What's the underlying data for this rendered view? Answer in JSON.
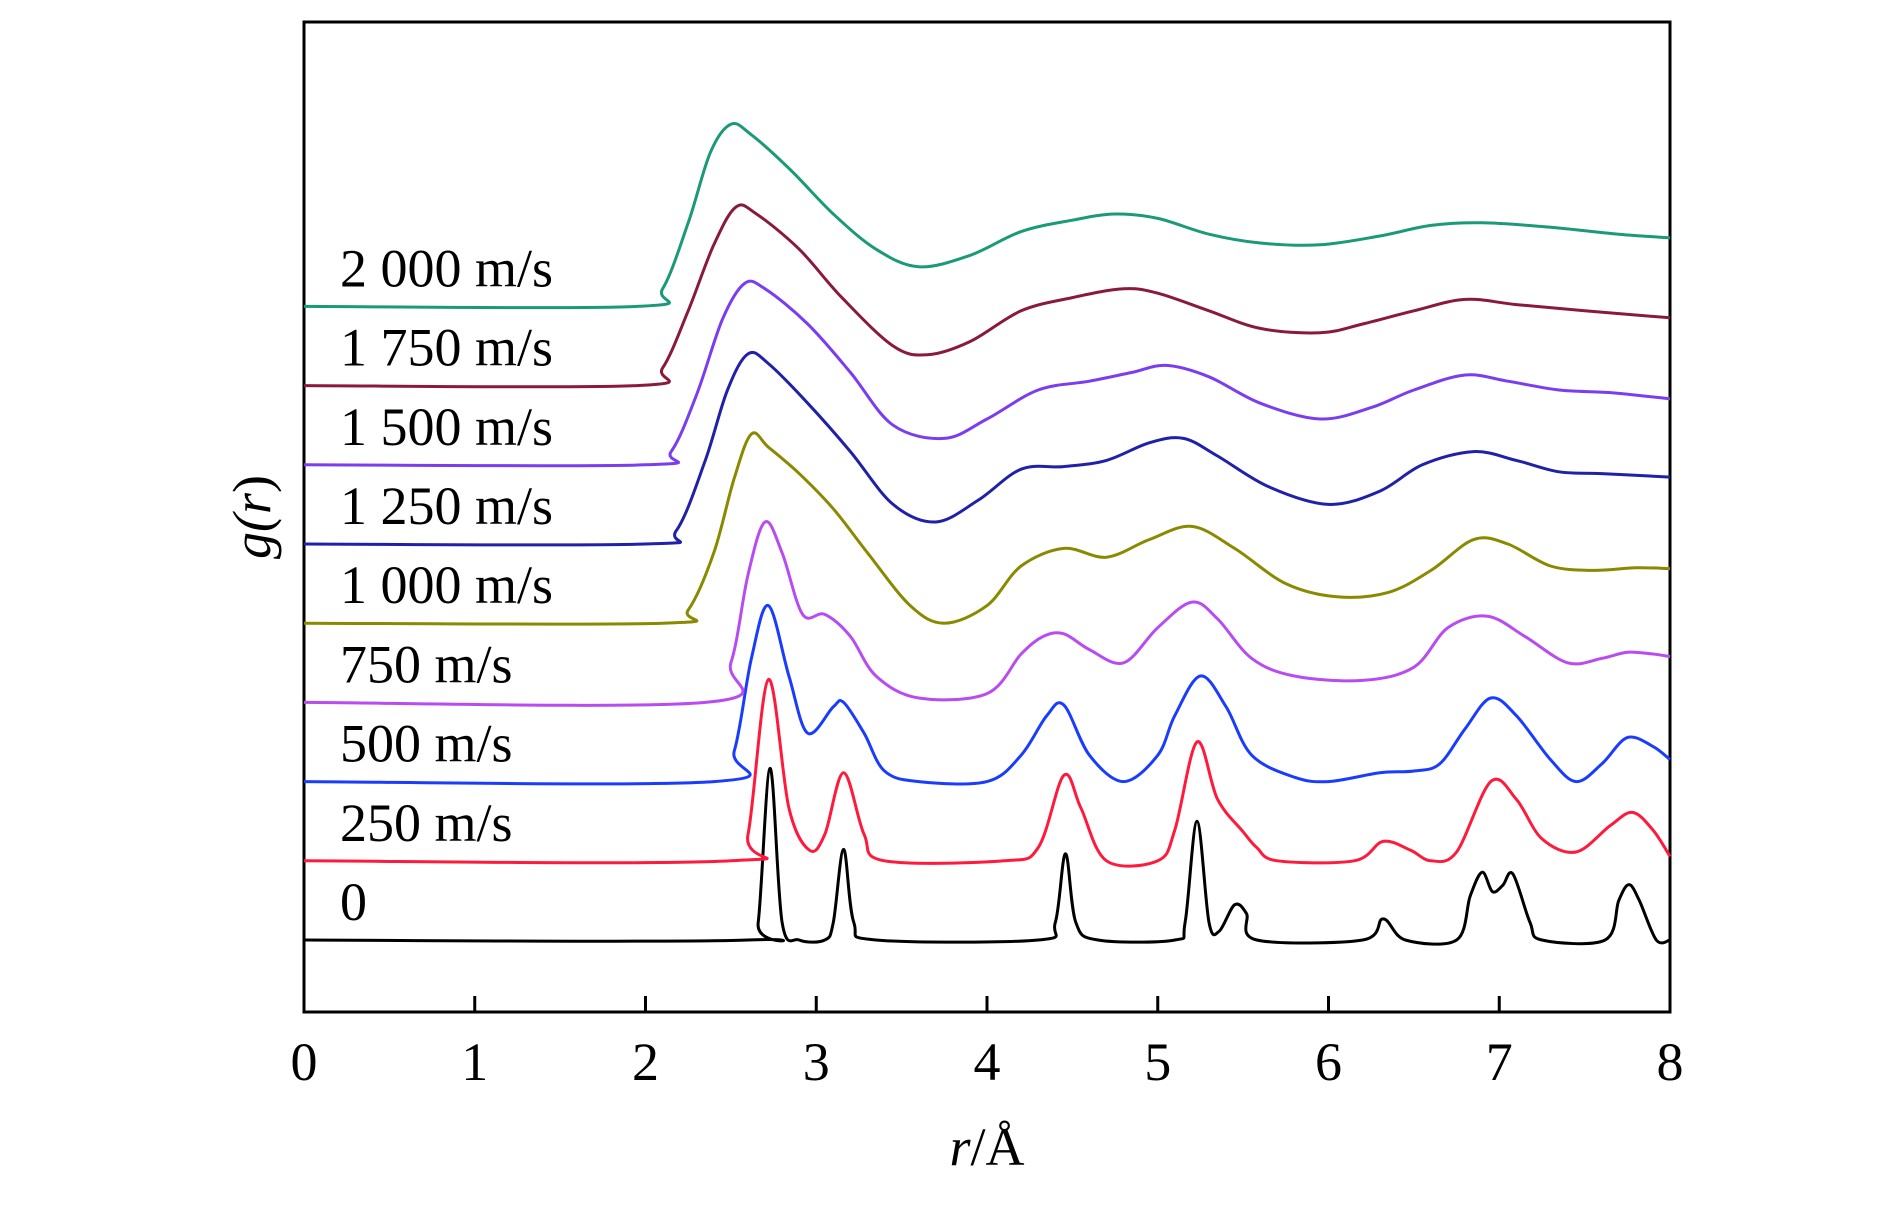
{
  "chart_data": {
    "type": "line",
    "title": "",
    "xlabel": {
      "italic": "r",
      "rest": "/Å"
    },
    "ylabel": {
      "prefix": "g(",
      "italic": "r",
      "suffix": ")"
    },
    "xlim": [
      0,
      8
    ],
    "x_ticks": [
      "0",
      "1",
      "2",
      "3",
      "4",
      "5",
      "6",
      "7",
      "8"
    ],
    "y_ticks": [],
    "grid": false,
    "legend": "labels printed at the left above each curve",
    "baseline_offsets_note": "curves are vertically stacked; y values are g(r) relative to each curve's own baseline",
    "series": [
      {
        "name": "0",
        "color": "#000000",
        "baseline": 0,
        "points": [
          [
            0,
            0
          ],
          [
            2.6,
            0
          ],
          [
            2.66,
            0.2
          ],
          [
            2.73,
            1.95
          ],
          [
            2.8,
            0.2
          ],
          [
            2.9,
            0
          ],
          [
            3.05,
            0
          ],
          [
            3.1,
            0.2
          ],
          [
            3.16,
            1.03
          ],
          [
            3.22,
            0.2
          ],
          [
            3.35,
            0
          ],
          [
            4.3,
            0
          ],
          [
            4.4,
            0.2
          ],
          [
            4.46,
            0.98
          ],
          [
            4.52,
            0.2
          ],
          [
            4.65,
            0
          ],
          [
            5.1,
            0
          ],
          [
            5.16,
            0.2
          ],
          [
            5.23,
            1.35
          ],
          [
            5.3,
            0.2
          ],
          [
            5.36,
            0.1
          ],
          [
            5.45,
            0.4
          ],
          [
            5.52,
            0.3
          ],
          [
            5.58,
            0
          ],
          [
            6.2,
            0
          ],
          [
            6.32,
            0.24
          ],
          [
            6.45,
            0
          ],
          [
            6.75,
            0
          ],
          [
            6.83,
            0.5
          ],
          [
            6.9,
            0.77
          ],
          [
            6.96,
            0.55
          ],
          [
            7.02,
            0.62
          ],
          [
            7.08,
            0.75
          ],
          [
            7.18,
            0.2
          ],
          [
            7.25,
            0
          ],
          [
            7.62,
            0
          ],
          [
            7.7,
            0.45
          ],
          [
            7.76,
            0.63
          ],
          [
            7.82,
            0.45
          ],
          [
            7.92,
            0
          ],
          [
            8,
            0
          ]
        ]
      },
      {
        "name": "250 m/s",
        "color": "#ff1a3c",
        "baseline": 0.9,
        "points": [
          [
            0,
            0
          ],
          [
            2.5,
            0
          ],
          [
            2.6,
            0.3
          ],
          [
            2.72,
            2.06
          ],
          [
            2.84,
            0.6
          ],
          [
            2.96,
            0.12
          ],
          [
            3.05,
            0.3
          ],
          [
            3.16,
            1.0
          ],
          [
            3.28,
            0.3
          ],
          [
            3.4,
            0
          ],
          [
            4.1,
            0
          ],
          [
            4.3,
            0.15
          ],
          [
            4.45,
            0.97
          ],
          [
            4.55,
            0.6
          ],
          [
            4.7,
            0
          ],
          [
            5,
            0
          ],
          [
            5.1,
            0.35
          ],
          [
            5.23,
            1.35
          ],
          [
            5.35,
            0.7
          ],
          [
            5.5,
            0.33
          ],
          [
            5.58,
            0.15
          ],
          [
            5.7,
            0
          ],
          [
            6.15,
            0
          ],
          [
            6.32,
            0.22
          ],
          [
            6.48,
            0.12
          ],
          [
            6.6,
            0
          ],
          [
            6.75,
            0.1
          ],
          [
            6.95,
            0.9
          ],
          [
            7.1,
            0.7
          ],
          [
            7.25,
            0.25
          ],
          [
            7.45,
            0.1
          ],
          [
            7.65,
            0.4
          ],
          [
            7.78,
            0.55
          ],
          [
            7.9,
            0.35
          ],
          [
            8,
            0.05
          ]
        ]
      },
      {
        "name": "500 m/s",
        "color": "#1a3cff",
        "baseline": 1.8,
        "points": [
          [
            0,
            0
          ],
          [
            2.4,
            0
          ],
          [
            2.52,
            0.35
          ],
          [
            2.62,
            1.4
          ],
          [
            2.72,
            2.0
          ],
          [
            2.84,
            1.2
          ],
          [
            2.95,
            0.55
          ],
          [
            3.1,
            0.85
          ],
          [
            3.16,
            0.9
          ],
          [
            3.28,
            0.55
          ],
          [
            3.4,
            0.12
          ],
          [
            3.6,
            0
          ],
          [
            4,
            0
          ],
          [
            4.2,
            0.3
          ],
          [
            4.35,
            0.75
          ],
          [
            4.45,
            0.87
          ],
          [
            4.6,
            0.3
          ],
          [
            4.8,
            0
          ],
          [
            5,
            0.3
          ],
          [
            5.1,
            0.75
          ],
          [
            5.25,
            1.2
          ],
          [
            5.4,
            0.85
          ],
          [
            5.55,
            0.3
          ],
          [
            5.8,
            0.05
          ],
          [
            6,
            0
          ],
          [
            6.3,
            0.1
          ],
          [
            6.5,
            0.12
          ],
          [
            6.65,
            0.2
          ],
          [
            6.8,
            0.6
          ],
          [
            6.95,
            0.95
          ],
          [
            7.1,
            0.75
          ],
          [
            7.3,
            0.25
          ],
          [
            7.45,
            0
          ],
          [
            7.6,
            0.2
          ],
          [
            7.75,
            0.5
          ],
          [
            7.9,
            0.4
          ],
          [
            8,
            0.25
          ]
        ]
      },
      {
        "name": "750 m/s",
        "color": "#b84cf0",
        "baseline": 2.7,
        "points": [
          [
            0,
            0
          ],
          [
            2.35,
            0
          ],
          [
            2.5,
            0.45
          ],
          [
            2.6,
            1.45
          ],
          [
            2.7,
            2.05
          ],
          [
            2.8,
            1.7
          ],
          [
            2.92,
            1.0
          ],
          [
            3.05,
            1.0
          ],
          [
            3.2,
            0.75
          ],
          [
            3.35,
            0.3
          ],
          [
            3.6,
            0.05
          ],
          [
            4,
            0.1
          ],
          [
            4.2,
            0.55
          ],
          [
            4.33,
            0.75
          ],
          [
            4.45,
            0.78
          ],
          [
            4.6,
            0.6
          ],
          [
            4.8,
            0.45
          ],
          [
            5,
            0.85
          ],
          [
            5.2,
            1.14
          ],
          [
            5.35,
            0.95
          ],
          [
            5.55,
            0.5
          ],
          [
            5.8,
            0.3
          ],
          [
            6.2,
            0.25
          ],
          [
            6.5,
            0.4
          ],
          [
            6.7,
            0.85
          ],
          [
            6.93,
            0.98
          ],
          [
            7.15,
            0.75
          ],
          [
            7.4,
            0.45
          ],
          [
            7.6,
            0.5
          ],
          [
            7.75,
            0.57
          ],
          [
            7.9,
            0.55
          ],
          [
            8,
            0.52
          ]
        ]
      },
      {
        "name": "1 000 m/s",
        "color": "#8a8a00",
        "baseline": 3.6,
        "points": [
          [
            0,
            0
          ],
          [
            2.1,
            0
          ],
          [
            2.25,
            0.15
          ],
          [
            2.4,
            0.8
          ],
          [
            2.52,
            1.65
          ],
          [
            2.62,
            2.15
          ],
          [
            2.72,
            2.0
          ],
          [
            2.9,
            1.7
          ],
          [
            3.1,
            1.3
          ],
          [
            3.3,
            0.8
          ],
          [
            3.55,
            0.2
          ],
          [
            3.75,
            0
          ],
          [
            4,
            0.2
          ],
          [
            4.2,
            0.65
          ],
          [
            4.45,
            0.85
          ],
          [
            4.7,
            0.75
          ],
          [
            4.95,
            0.95
          ],
          [
            5.2,
            1.1
          ],
          [
            5.45,
            0.85
          ],
          [
            5.75,
            0.45
          ],
          [
            6.05,
            0.3
          ],
          [
            6.35,
            0.35
          ],
          [
            6.6,
            0.6
          ],
          [
            6.85,
            0.95
          ],
          [
            7.05,
            0.9
          ],
          [
            7.3,
            0.65
          ],
          [
            7.55,
            0.6
          ],
          [
            7.8,
            0.63
          ],
          [
            8,
            0.62
          ]
        ]
      },
      {
        "name": "1 250 m/s",
        "color": "#2020a8",
        "baseline": 4.5,
        "points": [
          [
            0,
            0
          ],
          [
            2,
            0
          ],
          [
            2.18,
            0.15
          ],
          [
            2.35,
            0.95
          ],
          [
            2.48,
            1.75
          ],
          [
            2.6,
            2.16
          ],
          [
            2.72,
            2.05
          ],
          [
            2.95,
            1.6
          ],
          [
            3.2,
            1.05
          ],
          [
            3.45,
            0.45
          ],
          [
            3.7,
            0.25
          ],
          [
            3.95,
            0.5
          ],
          [
            4.2,
            0.85
          ],
          [
            4.45,
            0.88
          ],
          [
            4.7,
            0.95
          ],
          [
            4.95,
            1.15
          ],
          [
            5.15,
            1.2
          ],
          [
            5.35,
            1.0
          ],
          [
            5.65,
            0.65
          ],
          [
            6,
            0.45
          ],
          [
            6.3,
            0.6
          ],
          [
            6.55,
            0.9
          ],
          [
            6.85,
            1.05
          ],
          [
            7.1,
            0.95
          ],
          [
            7.35,
            0.82
          ],
          [
            7.6,
            0.8
          ],
          [
            8,
            0.76
          ]
        ]
      },
      {
        "name": "1 500 m/s",
        "color": "#7b3df0",
        "baseline": 5.4,
        "points": [
          [
            0,
            0
          ],
          [
            2,
            0
          ],
          [
            2.15,
            0.15
          ],
          [
            2.3,
            0.8
          ],
          [
            2.45,
            1.65
          ],
          [
            2.58,
            2.06
          ],
          [
            2.7,
            2.0
          ],
          [
            2.95,
            1.6
          ],
          [
            3.2,
            1.05
          ],
          [
            3.45,
            0.45
          ],
          [
            3.75,
            0.3
          ],
          [
            4,
            0.52
          ],
          [
            4.3,
            0.85
          ],
          [
            4.6,
            0.95
          ],
          [
            4.85,
            1.05
          ],
          [
            5.05,
            1.13
          ],
          [
            5.3,
            1.0
          ],
          [
            5.6,
            0.7
          ],
          [
            5.95,
            0.52
          ],
          [
            6.25,
            0.65
          ],
          [
            6.5,
            0.85
          ],
          [
            6.8,
            1.02
          ],
          [
            7.05,
            0.95
          ],
          [
            7.35,
            0.85
          ],
          [
            7.65,
            0.82
          ],
          [
            8,
            0.75
          ]
        ]
      },
      {
        "name": "1 750 m/s",
        "color": "#8a1a3c",
        "baseline": 6.3,
        "points": [
          [
            0,
            0
          ],
          [
            1.95,
            0
          ],
          [
            2.1,
            0.2
          ],
          [
            2.25,
            0.85
          ],
          [
            2.4,
            1.6
          ],
          [
            2.53,
            2.03
          ],
          [
            2.65,
            1.95
          ],
          [
            2.9,
            1.55
          ],
          [
            3.15,
            1.0
          ],
          [
            3.45,
            0.45
          ],
          [
            3.65,
            0.35
          ],
          [
            3.9,
            0.5
          ],
          [
            4.2,
            0.85
          ],
          [
            4.5,
            1.0
          ],
          [
            4.8,
            1.1
          ],
          [
            5,
            1.05
          ],
          [
            5.3,
            0.85
          ],
          [
            5.6,
            0.65
          ],
          [
            5.95,
            0.6
          ],
          [
            6.2,
            0.7
          ],
          [
            6.5,
            0.85
          ],
          [
            6.8,
            0.98
          ],
          [
            7.1,
            0.92
          ],
          [
            7.5,
            0.85
          ],
          [
            8,
            0.77
          ]
        ]
      },
      {
        "name": "2 000 m/s",
        "color": "#1a9a78",
        "baseline": 7.2,
        "points": [
          [
            0,
            0
          ],
          [
            1.95,
            0
          ],
          [
            2.1,
            0.2
          ],
          [
            2.25,
            0.95
          ],
          [
            2.38,
            1.75
          ],
          [
            2.5,
            2.07
          ],
          [
            2.62,
            1.95
          ],
          [
            2.85,
            1.55
          ],
          [
            3.1,
            1.05
          ],
          [
            3.35,
            0.65
          ],
          [
            3.6,
            0.45
          ],
          [
            3.9,
            0.58
          ],
          [
            4.2,
            0.85
          ],
          [
            4.5,
            0.98
          ],
          [
            4.75,
            1.05
          ],
          [
            5,
            1.0
          ],
          [
            5.3,
            0.82
          ],
          [
            5.6,
            0.72
          ],
          [
            5.95,
            0.7
          ],
          [
            6.3,
            0.8
          ],
          [
            6.6,
            0.92
          ],
          [
            6.9,
            0.95
          ],
          [
            7.3,
            0.9
          ],
          [
            7.7,
            0.82
          ],
          [
            8,
            0.78
          ]
        ]
      }
    ]
  }
}
